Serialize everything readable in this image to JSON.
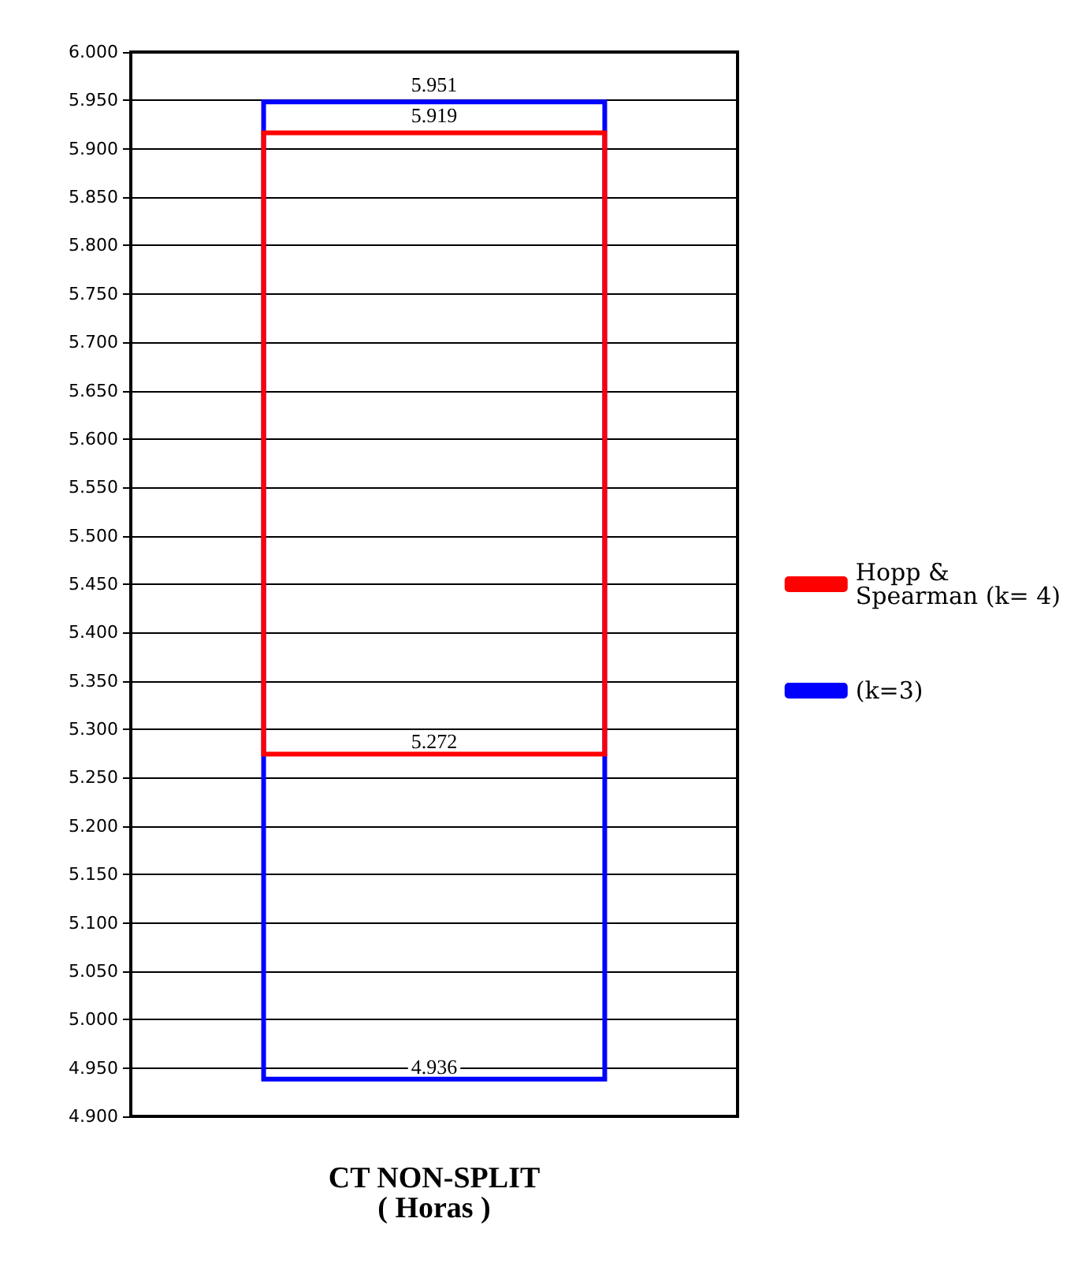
{
  "chart_data": {
    "type": "bar",
    "xlabel": "CT NON-SPLIT\n( Horas )",
    "categories": [
      null
    ],
    "series": [
      {
        "name": "Hopp & Spearman (k= 4)",
        "color": "#ff0000",
        "values": [
          0.647
        ],
        "base": [
          5.272
        ]
      },
      {
        "name": "(k=3)",
        "color": "#0000ff",
        "values": [
          1.015
        ],
        "base": [
          4.936
        ]
      }
    ],
    "ylim": [
      4.9,
      6.0
    ],
    "yticks": [
      {
        "value": 4.9,
        "label": "4.900"
      },
      {
        "value": 4.95,
        "label": "4.950"
      },
      {
        "value": 5.0,
        "label": "5.000"
      },
      {
        "value": 5.05,
        "label": "5.050"
      },
      {
        "value": 5.1,
        "label": "5.100"
      },
      {
        "value": 5.15,
        "label": "5.150"
      },
      {
        "value": 5.2,
        "label": "5.200"
      },
      {
        "value": 5.25,
        "label": "5.250"
      },
      {
        "value": 5.3,
        "label": "5.300"
      },
      {
        "value": 5.35,
        "label": "5.350"
      },
      {
        "value": 5.4,
        "label": "5.400"
      },
      {
        "value": 5.45,
        "label": "5.450"
      },
      {
        "value": 5.5,
        "label": "5.500"
      },
      {
        "value": 5.55,
        "label": "5.550"
      },
      {
        "value": 5.6,
        "label": "5.600"
      },
      {
        "value": 5.65,
        "label": "5.650"
      },
      {
        "value": 5.7,
        "label": "5.700"
      },
      {
        "value": 5.75,
        "label": "5.750"
      },
      {
        "value": 5.8,
        "label": "5.800"
      },
      {
        "value": 5.85,
        "label": "5.850"
      },
      {
        "value": 5.9,
        "label": "5.900"
      },
      {
        "value": 5.95,
        "label": "5.950"
      },
      {
        "value": 6.0,
        "label": "6.000"
      }
    ],
    "grid": "y",
    "legend": "right",
    "annotations": [
      {
        "text": "5.951",
        "y": 5.951
      },
      {
        "text": "5.919",
        "y": 5.919
      },
      {
        "text": "5.272",
        "y": 5.272
      },
      {
        "text": "4.936",
        "y": 4.936
      }
    ]
  }
}
